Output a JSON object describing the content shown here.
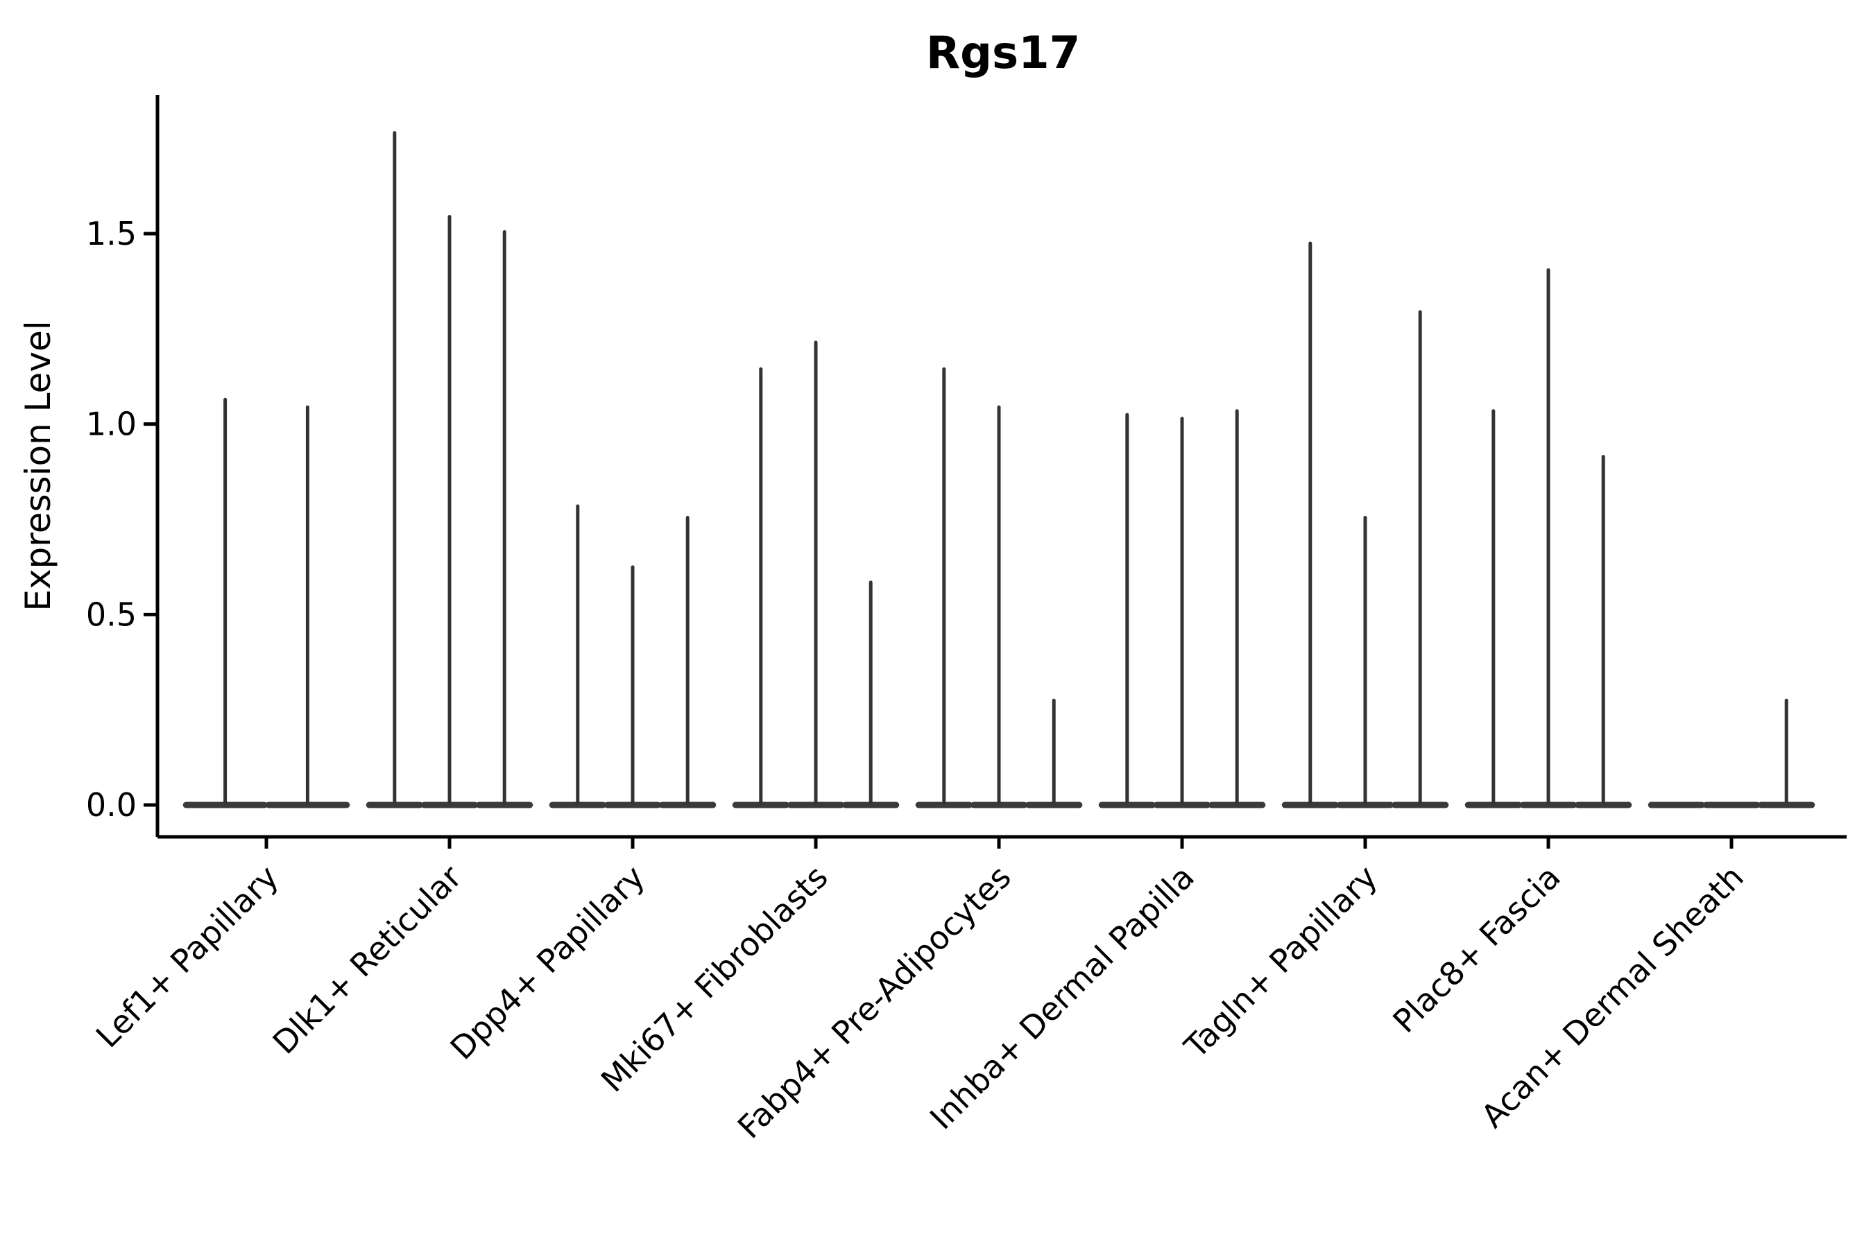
{
  "figure": {
    "title": "Rgs17",
    "background": "#ffffff",
    "line_color": "#333333",
    "base_color": "#3a3a3a",
    "axis_color": "#000000"
  },
  "chart_data": {
    "type": "violin",
    "title": "Rgs17",
    "xlabel": "",
    "ylabel": "Expression Level",
    "categories": [
      "Lef1+ Papillary",
      "Dlk1+ Reticular",
      "Dpp4+ Papillary",
      "Mki67+ Fibroblasts",
      "Fabp4+ Pre-Adipocytes",
      "Inhba+ Dermal Papilla",
      "Tagln+ Papillary",
      "Plac8+ Fascia",
      "Acan+ Dermal Sheath"
    ],
    "max_expression_per_violin": [
      [
        1.07,
        1.05
      ],
      [
        1.77,
        1.55,
        1.51
      ],
      [
        0.79,
        0.63,
        0.76
      ],
      [
        1.15,
        1.22,
        0.59
      ],
      [
        1.15,
        1.05,
        0.28
      ],
      [
        1.03,
        1.02,
        1.04
      ],
      [
        1.48,
        0.76,
        1.3
      ],
      [
        1.04,
        1.41,
        0.92
      ],
      [
        0,
        0,
        0.28
      ]
    ],
    "violin_shape_note": "each violin collapses to a wide flat base at 0 with a single thin spike up to its max value",
    "yticks": [
      0.0,
      0.5,
      1.0,
      1.5
    ],
    "ytick_labels": [
      "0.0",
      "0.5",
      "1.0",
      "1.5"
    ],
    "ylim": [
      -0.084,
      1.864
    ],
    "grid": false,
    "legend": "none",
    "xtick_rotation_deg": 45
  }
}
